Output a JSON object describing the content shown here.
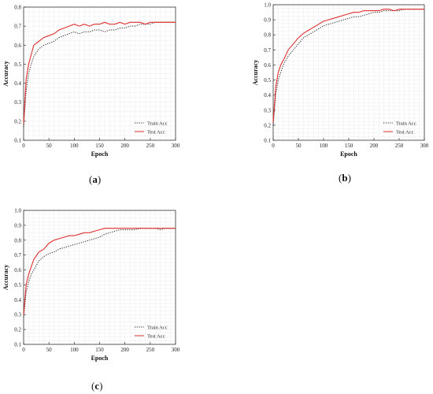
{
  "chart_data": [
    {
      "type": "line",
      "caption_letter": "a",
      "xlabel": "Epoch",
      "ylabel": "Accuracy",
      "xlim": [
        0,
        300
      ],
      "ylim": [
        0.1,
        0.8
      ],
      "xticks": [
        0,
        50,
        100,
        150,
        200,
        250,
        300
      ],
      "yticks": [
        0.1,
        0.2,
        0.3,
        0.4,
        0.5,
        0.6,
        0.7,
        0.8
      ],
      "grid": true,
      "legend_position": "bottom-right",
      "series": [
        {
          "name": "Train Acc",
          "style": "dotted",
          "color": "#222222",
          "x": [
            0,
            5,
            10,
            15,
            20,
            30,
            40,
            50,
            60,
            70,
            80,
            90,
            100,
            110,
            120,
            130,
            140,
            150,
            160,
            170,
            180,
            190,
            200,
            210,
            220,
            230,
            240,
            250,
            260,
            270,
            280,
            290,
            300
          ],
          "y": [
            0.17,
            0.36,
            0.45,
            0.5,
            0.54,
            0.58,
            0.6,
            0.61,
            0.62,
            0.64,
            0.65,
            0.66,
            0.67,
            0.66,
            0.67,
            0.67,
            0.68,
            0.68,
            0.67,
            0.68,
            0.68,
            0.69,
            0.69,
            0.7,
            0.7,
            0.71,
            0.71,
            0.71,
            0.72,
            0.72,
            0.72,
            0.72,
            0.72
          ]
        },
        {
          "name": "Test Acc",
          "style": "solid",
          "color": "#e03030",
          "x": [
            0,
            5,
            10,
            15,
            20,
            30,
            40,
            50,
            60,
            70,
            80,
            90,
            100,
            110,
            120,
            130,
            140,
            150,
            160,
            170,
            180,
            190,
            200,
            210,
            220,
            230,
            240,
            250,
            260,
            270,
            280,
            290,
            300
          ],
          "y": [
            0.19,
            0.42,
            0.5,
            0.55,
            0.6,
            0.62,
            0.64,
            0.65,
            0.66,
            0.68,
            0.69,
            0.7,
            0.71,
            0.7,
            0.71,
            0.7,
            0.71,
            0.71,
            0.72,
            0.71,
            0.71,
            0.72,
            0.71,
            0.72,
            0.72,
            0.72,
            0.71,
            0.72,
            0.72,
            0.72,
            0.72,
            0.72,
            0.72
          ]
        }
      ]
    },
    {
      "type": "line",
      "caption_letter": "b",
      "xlabel": "Epoch",
      "ylabel": "Accuracy",
      "xlim": [
        0,
        300
      ],
      "ylim": [
        0.1,
        1.0
      ],
      "xticks": [
        0,
        50,
        100,
        150,
        200,
        250,
        300
      ],
      "yticks": [
        0.1,
        0.2,
        0.3,
        0.4,
        0.5,
        0.6,
        0.7,
        0.8,
        0.9,
        1.0
      ],
      "grid": true,
      "legend_position": "bottom-right",
      "series": [
        {
          "name": "Train Acc",
          "style": "dotted",
          "color": "#222222",
          "x": [
            0,
            5,
            10,
            15,
            20,
            30,
            40,
            50,
            60,
            70,
            80,
            90,
            100,
            110,
            120,
            130,
            140,
            150,
            160,
            170,
            180,
            190,
            200,
            210,
            220,
            230,
            240,
            250,
            260,
            270,
            280,
            290,
            300
          ],
          "y": [
            0.2,
            0.4,
            0.5,
            0.55,
            0.6,
            0.66,
            0.7,
            0.74,
            0.78,
            0.8,
            0.82,
            0.84,
            0.86,
            0.87,
            0.88,
            0.89,
            0.9,
            0.91,
            0.92,
            0.92,
            0.93,
            0.94,
            0.95,
            0.95,
            0.96,
            0.96,
            0.96,
            0.96,
            0.97,
            0.97,
            0.97,
            0.97,
            0.97
          ]
        },
        {
          "name": "Test Acc",
          "style": "solid",
          "color": "#e03030",
          "x": [
            0,
            5,
            10,
            15,
            20,
            30,
            40,
            50,
            60,
            70,
            80,
            90,
            100,
            110,
            120,
            130,
            140,
            150,
            160,
            170,
            180,
            190,
            200,
            210,
            220,
            230,
            240,
            250,
            260,
            270,
            280,
            290,
            300
          ],
          "y": [
            0.22,
            0.45,
            0.55,
            0.6,
            0.63,
            0.7,
            0.74,
            0.78,
            0.81,
            0.83,
            0.85,
            0.87,
            0.89,
            0.9,
            0.91,
            0.92,
            0.93,
            0.94,
            0.95,
            0.95,
            0.96,
            0.96,
            0.96,
            0.96,
            0.97,
            0.97,
            0.96,
            0.97,
            0.97,
            0.97,
            0.97,
            0.97,
            0.97
          ]
        }
      ]
    },
    {
      "type": "line",
      "caption_letter": "c",
      "xlabel": "Epoch",
      "ylabel": "Accuracy",
      "xlim": [
        0,
        300
      ],
      "ylim": [
        0.1,
        1.0
      ],
      "xticks": [
        0,
        50,
        100,
        150,
        200,
        250,
        300
      ],
      "yticks": [
        0.1,
        0.2,
        0.3,
        0.4,
        0.5,
        0.6,
        0.7,
        0.8,
        0.9,
        1.0
      ],
      "grid": true,
      "legend_position": "bottom-right",
      "series": [
        {
          "name": "Train Acc",
          "style": "dotted",
          "color": "#222222",
          "x": [
            0,
            5,
            10,
            15,
            20,
            30,
            40,
            50,
            60,
            70,
            80,
            90,
            100,
            110,
            120,
            130,
            140,
            150,
            160,
            170,
            180,
            190,
            200,
            210,
            220,
            230,
            240,
            250,
            260,
            270,
            280,
            290,
            300
          ],
          "y": [
            0.28,
            0.45,
            0.52,
            0.57,
            0.6,
            0.66,
            0.69,
            0.71,
            0.72,
            0.74,
            0.75,
            0.76,
            0.77,
            0.78,
            0.79,
            0.8,
            0.81,
            0.82,
            0.84,
            0.85,
            0.86,
            0.87,
            0.87,
            0.87,
            0.87,
            0.88,
            0.88,
            0.88,
            0.88,
            0.87,
            0.88,
            0.88,
            0.88
          ]
        },
        {
          "name": "Test Acc",
          "style": "solid",
          "color": "#e03030",
          "x": [
            0,
            5,
            10,
            15,
            20,
            30,
            40,
            50,
            60,
            70,
            80,
            90,
            100,
            110,
            120,
            130,
            140,
            150,
            160,
            170,
            180,
            190,
            200,
            210,
            220,
            230,
            240,
            250,
            260,
            270,
            280,
            290,
            300
          ],
          "y": [
            0.3,
            0.5,
            0.57,
            0.62,
            0.67,
            0.72,
            0.74,
            0.78,
            0.8,
            0.81,
            0.82,
            0.83,
            0.83,
            0.84,
            0.85,
            0.85,
            0.86,
            0.87,
            0.88,
            0.88,
            0.88,
            0.88,
            0.88,
            0.88,
            0.88,
            0.88,
            0.88,
            0.88,
            0.88,
            0.88,
            0.88,
            0.88,
            0.88
          ]
        }
      ]
    }
  ]
}
